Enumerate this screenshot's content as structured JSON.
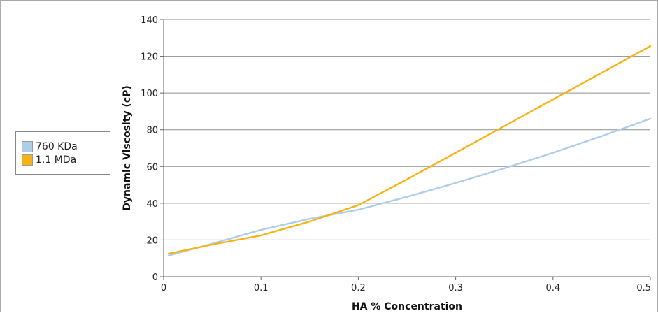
{
  "chart_data": {
    "type": "line",
    "title": "",
    "xlabel": "HA % Concentration",
    "ylabel": "Dynamic Viscosity (cP)",
    "xlim": [
      0,
      0.5
    ],
    "ylim": [
      0,
      140
    ],
    "x_ticks": [
      0,
      0.1,
      0.2,
      0.3,
      0.4,
      0.5
    ],
    "x_tick_labels": [
      "0",
      "0.1",
      "0.2",
      "0.3",
      "0.4",
      "0.5"
    ],
    "y_ticks": [
      0,
      20,
      40,
      60,
      80,
      100,
      120,
      140
    ],
    "y_tick_labels": [
      "0",
      "20",
      "40",
      "60",
      "80",
      "100",
      "120",
      "140"
    ],
    "grid": "horizontal",
    "legend_position": "left",
    "series": [
      {
        "name": "760 KDa",
        "color": "#aecde8",
        "x": [
          0.005,
          0.05,
          0.1,
          0.15,
          0.2,
          0.25,
          0.3,
          0.35,
          0.4,
          0.45,
          0.5
        ],
        "y": [
          11.5,
          18,
          25.5,
          31.5,
          36.5,
          43.5,
          51,
          59,
          67.5,
          76.5,
          86
        ]
      },
      {
        "name": "1.1 MDa",
        "color": "#f5b317",
        "x": [
          0.005,
          0.05,
          0.1,
          0.15,
          0.2,
          0.25,
          0.3,
          0.35,
          0.4,
          0.45,
          0.5
        ],
        "y": [
          12.5,
          17.5,
          22.5,
          30,
          39,
          53,
          67.5,
          82,
          96.5,
          111,
          125.5
        ]
      }
    ]
  }
}
